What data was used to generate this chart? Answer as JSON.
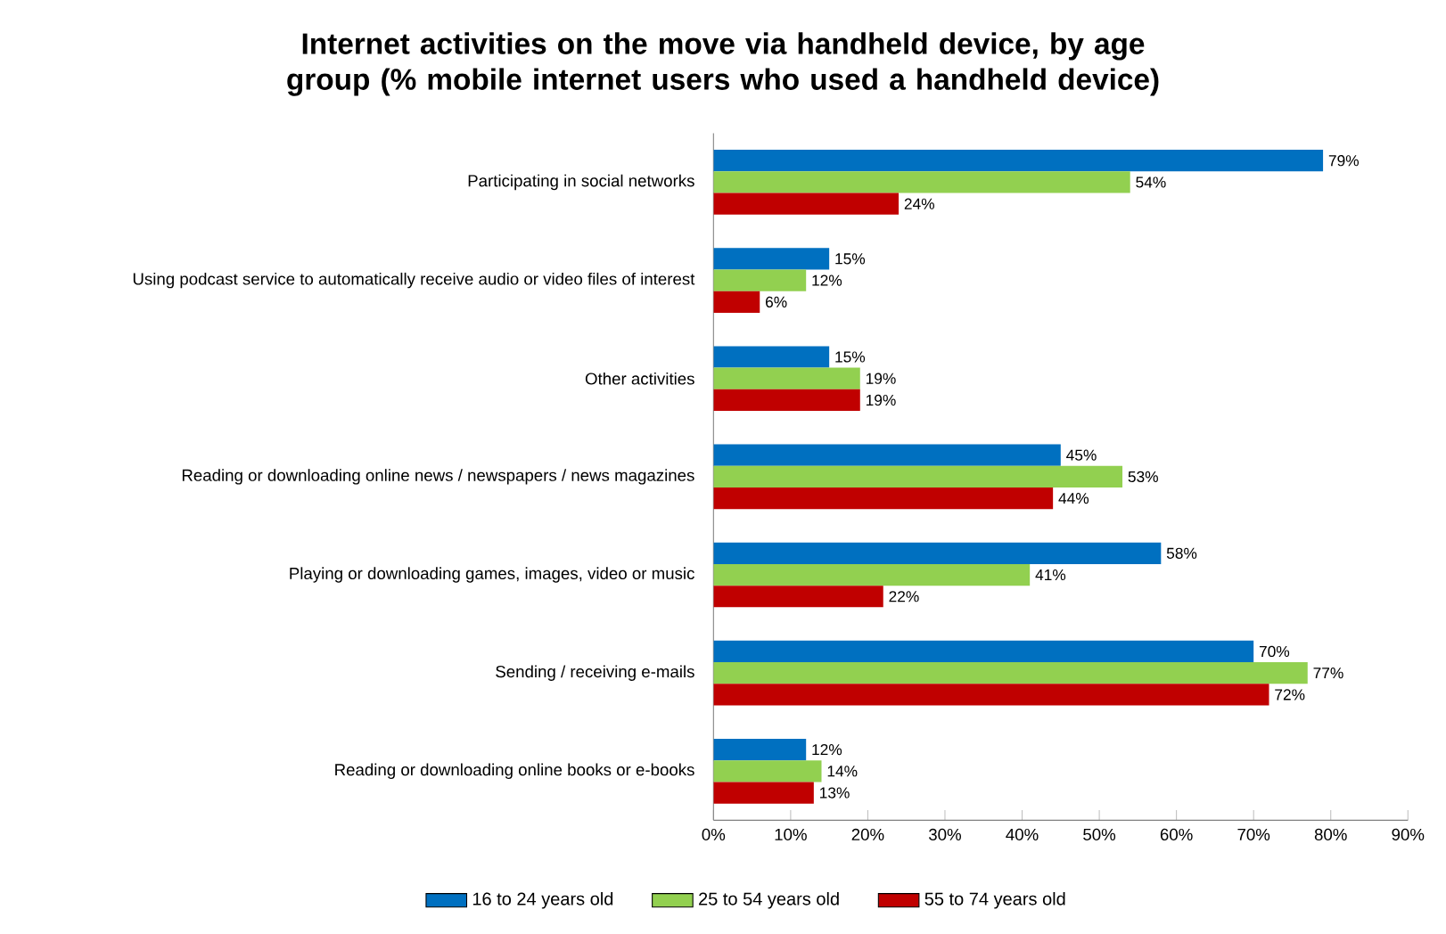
{
  "chart_data": {
    "type": "bar",
    "orientation": "horizontal",
    "title": "Internet activities on the move via handheld device, by age group (% mobile internet users who used a handheld device)",
    "categories": [
      "Participating in social networks",
      "Using podcast service to automatically receive audio or video files of interest",
      "Other activities",
      "Reading or downloading online news / newspapers / news magazines",
      "Playing or downloading games, images, video or music",
      "Sending / receiving e-mails",
      "Reading or downloading online books or e-books"
    ],
    "series": [
      {
        "name": "16 to 24 years old",
        "color": "#0070c0",
        "values": [
          79,
          15,
          15,
          45,
          58,
          70,
          12
        ],
        "value_labels": [
          "79%",
          "15%",
          "15%",
          "45%",
          "58%",
          "70%",
          "12%"
        ]
      },
      {
        "name": "25 to 54 years old",
        "color": "#92d050",
        "values": [
          54,
          12,
          19,
          53,
          41,
          77,
          14
        ],
        "value_labels": [
          "54%",
          "12%",
          "19%",
          "53%",
          "41%",
          "77%",
          "14%"
        ]
      },
      {
        "name": "55 to 74 years old",
        "color": "#c00000",
        "values": [
          24,
          6,
          19,
          44,
          22,
          72,
          13
        ],
        "value_labels": [
          "24%",
          "6%",
          "19%",
          "44%",
          "22%",
          "72%",
          "13%"
        ]
      }
    ],
    "xlim": [
      0,
      90
    ],
    "xticks": [
      {
        "value": 0,
        "label": "0%"
      },
      {
        "value": 10,
        "label": "10%"
      },
      {
        "value": 20,
        "label": "20%"
      },
      {
        "value": 30,
        "label": "30%"
      },
      {
        "value": 40,
        "label": "40%"
      },
      {
        "value": 50,
        "label": "50%"
      },
      {
        "value": 60,
        "label": "60%"
      },
      {
        "value": 70,
        "label": "70%"
      },
      {
        "value": 80,
        "label": "80%"
      },
      {
        "value": 90,
        "label": "90%"
      }
    ],
    "grid": false,
    "legend": "bottom"
  }
}
